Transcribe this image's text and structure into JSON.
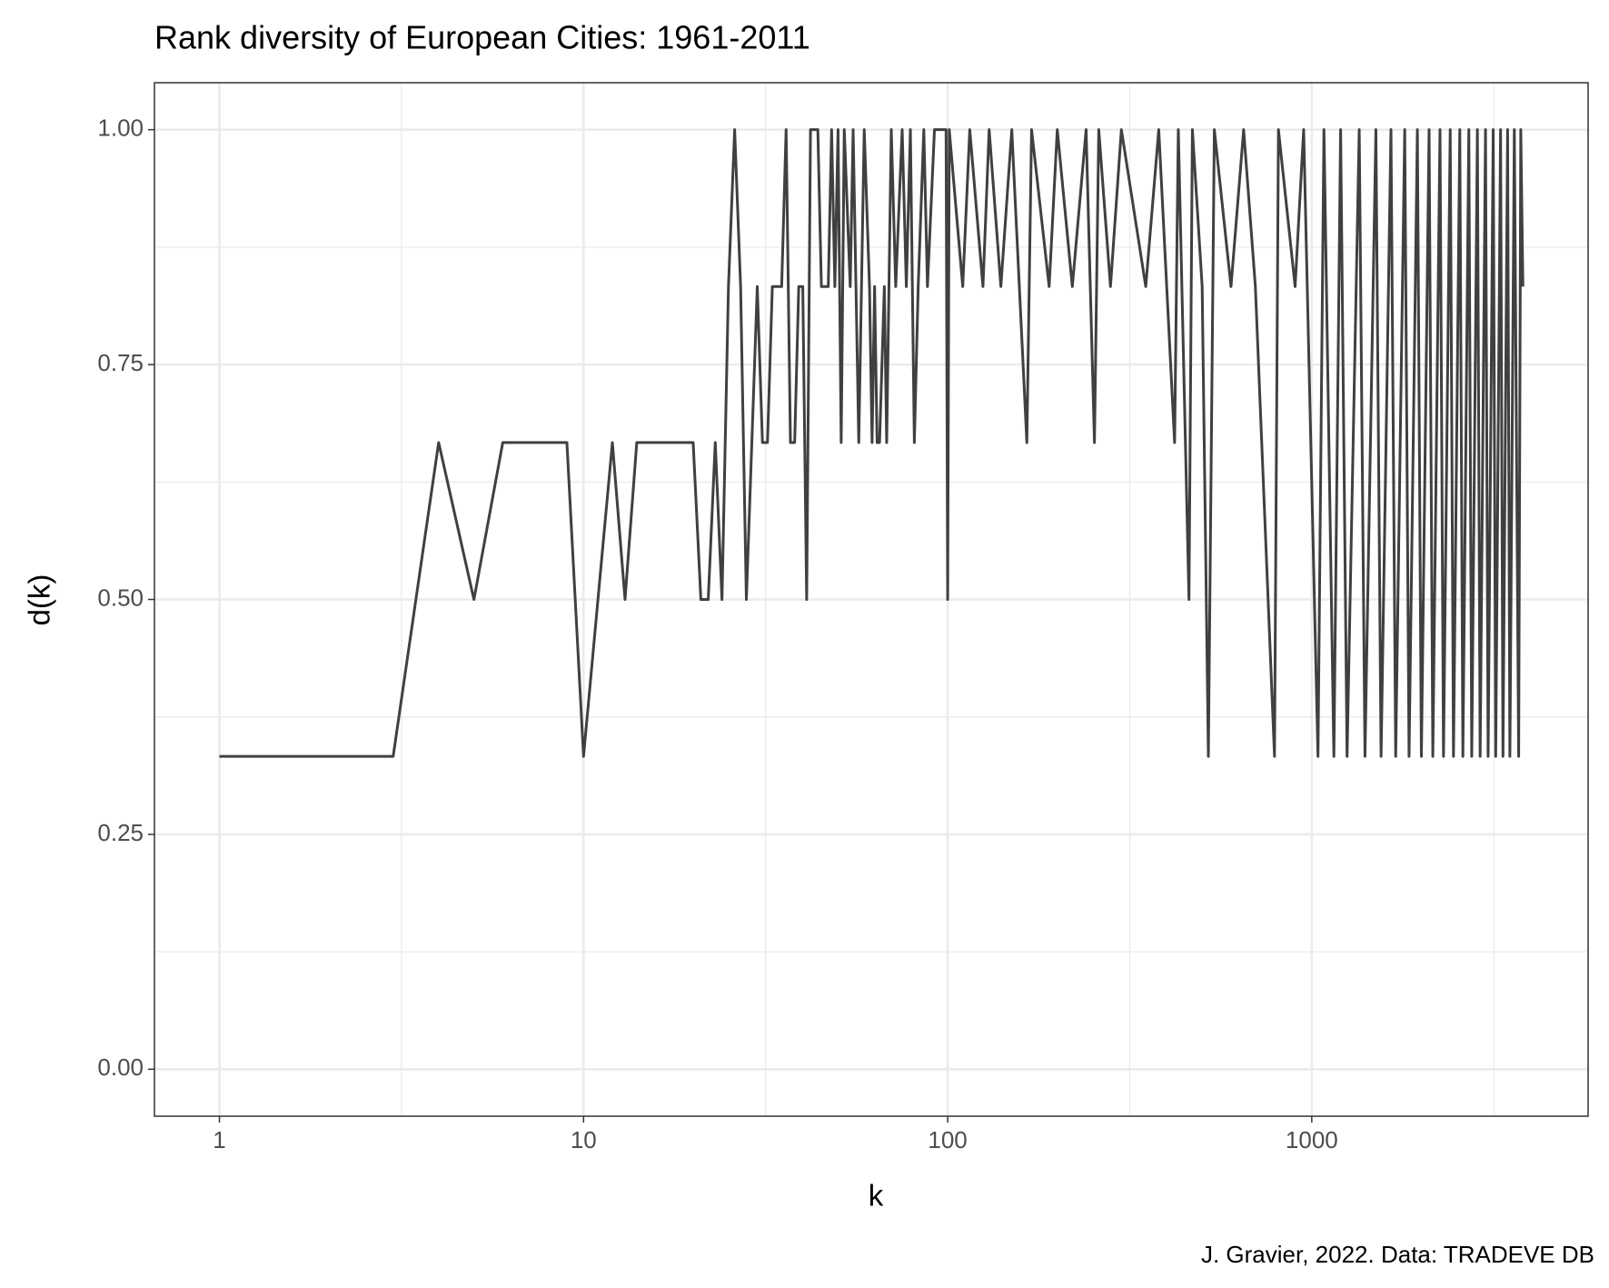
{
  "chart_data": {
    "type": "line",
    "title": "Rank diversity of European Cities: 1961-2011",
    "x_label": "k",
    "y_label": "d(k)",
    "caption": "J. Gravier, 2022. Data: TRADEVE DB",
    "log_x": true,
    "grid": true,
    "color": "#404040",
    "xlim": [
      0.663,
      5740
    ],
    "xticks": [
      1,
      10,
      100,
      1000
    ],
    "xminor": [
      3.162,
      31.62,
      316.2,
      3162
    ],
    "ylim": [
      -0.05,
      1.05
    ],
    "yticks": [
      {
        "value": 0,
        "label": "0.00"
      },
      {
        "value": 0.25,
        "label": "0.25"
      },
      {
        "value": 0.5,
        "label": "0.50"
      },
      {
        "value": 0.75,
        "label": "0.75"
      },
      {
        "value": 1,
        "label": "1.00"
      }
    ],
    "yminor": [
      0.125,
      0.375,
      0.625,
      0.875
    ],
    "x": [
      1,
      2,
      3,
      4,
      5,
      6,
      7,
      8,
      9,
      10,
      12,
      13,
      14,
      15,
      16,
      17,
      18,
      19,
      20,
      21,
      22,
      23,
      24,
      25,
      26,
      27,
      28,
      30,
      31,
      32,
      33,
      34,
      35,
      36,
      37,
      38,
      39,
      40,
      41,
      42,
      43,
      44,
      45,
      46,
      47,
      48,
      49,
      50,
      51,
      52,
      54,
      55,
      57,
      59,
      61,
      62,
      63,
      64,
      65,
      67,
      68,
      70,
      72,
      75,
      77,
      79,
      81,
      83,
      86,
      88,
      92,
      99,
      100,
      101,
      110,
      115,
      125,
      130,
      140,
      150,
      165,
      170,
      190,
      200,
      220,
      240,
      253,
      260,
      280,
      300,
      350,
      380,
      420,
      430,
      460,
      470,
      500,
      520,
      540,
      600,
      650,
      700,
      790,
      810,
      900,
      950,
      1040,
      1080,
      1150,
      1200,
      1250,
      1350,
      1400,
      1500,
      1550,
      1650,
      1700,
      1800,
      1850,
      1950,
      2000,
      2100,
      2150,
      2250,
      2300,
      2400,
      2450,
      2550,
      2600,
      2700,
      2750,
      2850,
      2900,
      3000,
      3050,
      3150,
      3200,
      3300,
      3350,
      3450,
      3500,
      3600,
      3700,
      3750,
      3800
    ],
    "values": [
      0.333,
      0.333,
      0.333,
      0.667,
      0.5,
      0.667,
      0.667,
      0.667,
      0.667,
      0.333,
      0.667,
      0.5,
      0.667,
      0.667,
      0.667,
      0.667,
      0.667,
      0.667,
      0.667,
      0.5,
      0.5,
      0.667,
      0.5,
      0.833,
      1,
      0.833,
      0.5,
      0.833,
      0.667,
      0.667,
      0.833,
      0.833,
      0.833,
      1,
      0.667,
      0.667,
      0.833,
      0.833,
      0.5,
      1,
      1,
      1,
      0.833,
      0.833,
      0.833,
      1,
      0.833,
      1,
      0.667,
      1,
      0.833,
      1,
      0.667,
      1,
      0.833,
      0.667,
      0.833,
      0.667,
      0.667,
      0.833,
      0.667,
      1,
      0.833,
      1,
      0.833,
      1,
      0.667,
      0.833,
      1,
      0.833,
      1,
      1,
      0.5,
      1,
      0.833,
      1,
      0.833,
      1,
      0.833,
      1,
      0.667,
      1,
      0.833,
      1,
      0.833,
      1,
      0.667,
      1,
      0.833,
      1,
      0.833,
      1,
      0.667,
      1,
      0.5,
      1,
      0.833,
      0.333,
      1,
      0.833,
      1,
      0.833,
      0.333,
      1,
      0.833,
      1,
      0.333,
      1,
      0.333,
      1,
      0.333,
      1,
      0.333,
      1,
      0.333,
      1,
      0.333,
      1,
      0.333,
      1,
      0.333,
      1,
      0.333,
      1,
      0.333,
      1,
      0.333,
      1,
      0.333,
      1,
      0.333,
      1,
      0.333,
      1,
      0.333,
      1,
      0.333,
      1,
      0.333,
      1,
      0.333,
      1,
      0.333,
      1,
      0.833
    ]
  }
}
